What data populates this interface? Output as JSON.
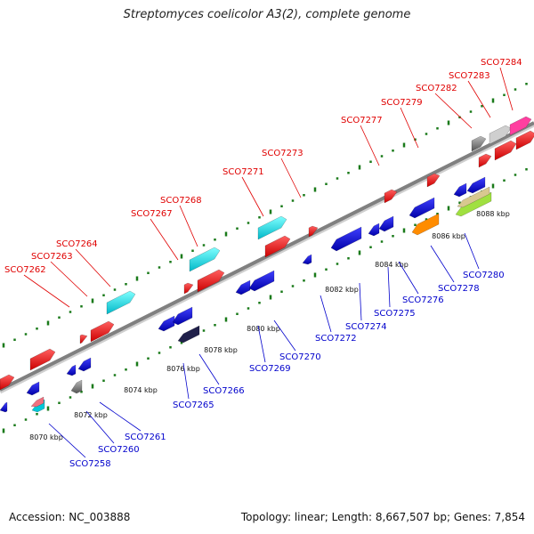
{
  "title": "Streptomyces coelicolor A3(2), complete genome",
  "footer": {
    "accession": "Accession: NC_003888",
    "topology": "Topology: linear; Length: 8,667,507 bp; Genes: 7,854"
  },
  "colors": {
    "forward_label": "#e00000",
    "reverse_label": "#0000cc",
    "backbone": "#808080",
    "tick": "#1a7a1a"
  },
  "forward_genes": [
    "SCO7262",
    "SCO7263",
    "SCO7264",
    "SCO7267",
    "SCO7268",
    "SCO7271",
    "SCO7273",
    "SCO7277",
    "SCO7279",
    "SCO7282",
    "SCO7283",
    "SCO7284"
  ],
  "reverse_genes": [
    "SCO7258",
    "SCO7260",
    "SCO7261",
    "SCO7265",
    "SCO7266",
    "SCO7269",
    "SCO7270",
    "SCO7272",
    "SCO7274",
    "SCO7275",
    "SCO7276",
    "SCO7278",
    "SCO7280"
  ],
  "kbp_ticks": [
    "8070 kbp",
    "8072 kbp",
    "8074 kbp",
    "8076 kbp",
    "8078 kbp",
    "8080 kbp",
    "8082 kbp",
    "8084 kbp",
    "8086 kbp",
    "8088 kbp"
  ]
}
